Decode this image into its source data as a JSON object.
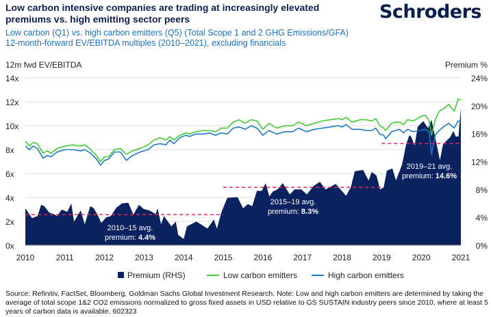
{
  "header": {
    "title": "Low carbon intensive companies are trading at increasingly elevated premiums vs. high emitting sector peers",
    "subtitle_line1": "Low carbon (Q1) vs. high carbon emitters (Q5) (Total Scope 1 and 2 GHG Emissions/GFA)",
    "subtitle_line2": "12-month-forward EV/EBITDA multiples (2010–2021), excluding financials",
    "logo": "Schroders"
  },
  "footer": {
    "source": "Source: Refinitiv, FactSet, Bloomberg, Goldman Sachs Global Investment Research. Note: Low and high carbon emitters are determined by taking the average of total scope 1&2 CO2 emissions normalized to gross fixed assets in USD relative to GS SUSTAIN industry peers since 2010, where at least 5 years of carbon data is available. 602323"
  },
  "colors": {
    "premium": "#0b2260",
    "low": "#3dcc2e",
    "high": "#1a7ac9",
    "avg": "#e8285a",
    "grid": "#dddddd"
  },
  "chart_data": {
    "type": "line+area",
    "ylabel_left": "12m fwd EV/EBITDA",
    "ylabel_right": "Premium %",
    "ylim_left": [
      0,
      14
    ],
    "ylim_right": [
      0,
      24
    ],
    "xlim": [
      2010,
      2021
    ],
    "x_ticks": [
      "2010",
      "2011",
      "2012",
      "2013",
      "2014",
      "2015",
      "2016",
      "2017",
      "2018",
      "2019",
      "2020",
      "2021"
    ],
    "y_ticks_left": [
      "0x",
      "2x",
      "4x",
      "6x",
      "8x",
      "10x",
      "12x",
      "14x"
    ],
    "y_ticks_right": [
      "0%",
      "4%",
      "8%",
      "12%",
      "16%",
      "20%",
      "24%"
    ],
    "grid": true,
    "legend_position": "bottom",
    "series": [
      {
        "name": "Premium (RHS)",
        "type": "area",
        "axis": "right",
        "points": [
          [
            2010,
            5.3
          ],
          [
            2010.17,
            3.9
          ],
          [
            2010.31,
            4.2
          ],
          [
            2010.4,
            5.8
          ],
          [
            2010.48,
            5.6
          ],
          [
            2010.6,
            4.7
          ],
          [
            2010.71,
            4.5
          ],
          [
            2010.8,
            4.2
          ],
          [
            2010.92,
            5.1
          ],
          [
            2011.06,
            4.8
          ],
          [
            2011.16,
            6.0
          ],
          [
            2011.23,
            3.4
          ],
          [
            2011.4,
            5.0
          ],
          [
            2011.5,
            3.0
          ],
          [
            2011.64,
            5.6
          ],
          [
            2011.73,
            5.3
          ],
          [
            2011.83,
            4.3
          ],
          [
            2011.92,
            3.2
          ],
          [
            2012.04,
            4.0
          ],
          [
            2012.16,
            4.2
          ],
          [
            2012.3,
            5.4
          ],
          [
            2012.44,
            6.0
          ],
          [
            2012.6,
            6.1
          ],
          [
            2012.73,
            4.4
          ],
          [
            2012.87,
            5.8
          ],
          [
            2012.99,
            5.2
          ],
          [
            2013.13,
            5.0
          ],
          [
            2013.29,
            4.5
          ],
          [
            2013.34,
            5.3
          ],
          [
            2013.43,
            3.0
          ],
          [
            2013.5,
            4.2
          ],
          [
            2013.69,
            2.7
          ],
          [
            2013.8,
            3.4
          ],
          [
            2013.86,
            1.5
          ],
          [
            2014.0,
            0.9
          ],
          [
            2014.08,
            2.7
          ],
          [
            2014.32,
            3.4
          ],
          [
            2014.6,
            2.4
          ],
          [
            2014.76,
            3.7
          ],
          [
            2014.84,
            2.4
          ],
          [
            2014.95,
            4.7
          ],
          [
            2015.1,
            6.8
          ],
          [
            2015.36,
            6.9
          ],
          [
            2015.5,
            5.3
          ],
          [
            2015.62,
            5.9
          ],
          [
            2015.73,
            5.6
          ],
          [
            2015.85,
            7.8
          ],
          [
            2015.97,
            7.8
          ],
          [
            2016.07,
            8.9
          ],
          [
            2016.16,
            7.0
          ],
          [
            2016.25,
            7.7
          ],
          [
            2016.37,
            8.0
          ],
          [
            2016.5,
            8.9
          ],
          [
            2016.68,
            7.3
          ],
          [
            2016.8,
            8.0
          ],
          [
            2016.97,
            8.0
          ],
          [
            2017.11,
            7.3
          ],
          [
            2017.28,
            8.5
          ],
          [
            2017.44,
            9.1
          ],
          [
            2017.58,
            8.0
          ],
          [
            2017.84,
            8.8
          ],
          [
            2018.1,
            7.1
          ],
          [
            2018.22,
            8.3
          ],
          [
            2018.32,
            10.6
          ],
          [
            2018.53,
            10.8
          ],
          [
            2018.67,
            9.3
          ],
          [
            2018.75,
            10.5
          ],
          [
            2018.87,
            10.0
          ],
          [
            2018.96,
            8.0
          ],
          [
            2019.05,
            8.3
          ],
          [
            2019.13,
            10.7
          ],
          [
            2019.27,
            11.0
          ],
          [
            2019.36,
            9.3
          ],
          [
            2019.51,
            11.5
          ],
          [
            2019.62,
            14.5
          ],
          [
            2019.7,
            15.8
          ],
          [
            2019.75,
            15.5
          ],
          [
            2019.83,
            14.3
          ],
          [
            2019.91,
            17.0
          ],
          [
            2020.05,
            17.8
          ],
          [
            2020.17,
            16.8
          ],
          [
            2020.26,
            18.0
          ],
          [
            2020.35,
            15.5
          ],
          [
            2020.47,
            12.2
          ],
          [
            2020.55,
            14.5
          ],
          [
            2020.64,
            15.0
          ],
          [
            2020.73,
            15.5
          ],
          [
            2020.81,
            16.4
          ],
          [
            2020.87,
            15.6
          ],
          [
            2020.94,
            15.6
          ],
          [
            2021.0,
            19.7
          ]
        ]
      },
      {
        "name": "Low carbon emitters",
        "type": "line",
        "axis": "left",
        "points": [
          [
            2010,
            8.7
          ],
          [
            2010.1,
            8.3
          ],
          [
            2010.2,
            8.6
          ],
          [
            2010.3,
            8.5
          ],
          [
            2010.45,
            7.7
          ],
          [
            2010.55,
            7.9
          ],
          [
            2010.65,
            7.7
          ],
          [
            2010.8,
            8.1
          ],
          [
            2011,
            8.3
          ],
          [
            2011.2,
            8.4
          ],
          [
            2011.4,
            8.3
          ],
          [
            2011.5,
            8.4
          ],
          [
            2011.65,
            8.0
          ],
          [
            2011.8,
            7.5
          ],
          [
            2011.9,
            7.0
          ],
          [
            2012,
            7.4
          ],
          [
            2012.1,
            7.4
          ],
          [
            2012.25,
            8.0
          ],
          [
            2012.4,
            8.1
          ],
          [
            2012.55,
            7.6
          ],
          [
            2012.7,
            7.9
          ],
          [
            2012.9,
            8.1
          ],
          [
            2013.1,
            8.4
          ],
          [
            2013.25,
            8.8
          ],
          [
            2013.4,
            9.0
          ],
          [
            2013.55,
            8.8
          ],
          [
            2013.65,
            9.1
          ],
          [
            2013.75,
            8.8
          ],
          [
            2013.9,
            9.2
          ],
          [
            2014.05,
            9.4
          ],
          [
            2014.15,
            9.3
          ],
          [
            2014.3,
            9.5
          ],
          [
            2014.5,
            9.6
          ],
          [
            2014.65,
            9.6
          ],
          [
            2014.8,
            9.5
          ],
          [
            2014.95,
            9.8
          ],
          [
            2015.1,
            9.8
          ],
          [
            2015.25,
            10.3
          ],
          [
            2015.4,
            10.5
          ],
          [
            2015.55,
            10.2
          ],
          [
            2015.7,
            10.5
          ],
          [
            2015.85,
            10.4
          ],
          [
            2016,
            9.7
          ],
          [
            2016.15,
            10.2
          ],
          [
            2016.35,
            9.8
          ],
          [
            2016.55,
            10.0
          ],
          [
            2016.75,
            10.0
          ],
          [
            2016.9,
            10.3
          ],
          [
            2017.1,
            10.0
          ],
          [
            2017.3,
            10.2
          ],
          [
            2017.5,
            10.4
          ],
          [
            2017.7,
            10.5
          ],
          [
            2017.9,
            10.6
          ],
          [
            2018,
            10.5
          ],
          [
            2018.1,
            10.7
          ],
          [
            2018.25,
            10.3
          ],
          [
            2018.45,
            10.5
          ],
          [
            2018.6,
            10.5
          ],
          [
            2018.75,
            10.4
          ],
          [
            2018.85,
            10.6
          ],
          [
            2018.95,
            10.0
          ],
          [
            2019.05,
            9.8
          ],
          [
            2019.1,
            9.6
          ],
          [
            2019.25,
            10.2
          ],
          [
            2019.35,
            10.3
          ],
          [
            2019.45,
            10.3
          ],
          [
            2019.55,
            10.1
          ],
          [
            2019.65,
            10.5
          ],
          [
            2019.8,
            10.4
          ],
          [
            2019.95,
            10.7
          ],
          [
            2020.1,
            10.9
          ],
          [
            2020.2,
            10.4
          ],
          [
            2020.26,
            9.2
          ],
          [
            2020.35,
            10.5
          ],
          [
            2020.45,
            11.2
          ],
          [
            2020.6,
            11.5
          ],
          [
            2020.69,
            11.8
          ],
          [
            2020.83,
            11.2
          ],
          [
            2020.93,
            12.2
          ],
          [
            2021,
            12.2
          ]
        ]
      },
      {
        "name": "High carbon emitters",
        "type": "line",
        "axis": "left",
        "points": [
          [
            2010,
            8.3
          ],
          [
            2010.1,
            8.0
          ],
          [
            2010.2,
            8.3
          ],
          [
            2010.3,
            8.1
          ],
          [
            2010.45,
            7.3
          ],
          [
            2010.55,
            7.5
          ],
          [
            2010.65,
            7.4
          ],
          [
            2010.8,
            7.8
          ],
          [
            2011,
            8.0
          ],
          [
            2011.2,
            8.0
          ],
          [
            2011.4,
            7.9
          ],
          [
            2011.5,
            8.0
          ],
          [
            2011.65,
            7.7
          ],
          [
            2011.8,
            7.2
          ],
          [
            2011.9,
            6.7
          ],
          [
            2012,
            7.1
          ],
          [
            2012.1,
            7.2
          ],
          [
            2012.25,
            7.8
          ],
          [
            2012.4,
            7.8
          ],
          [
            2012.55,
            7.1
          ],
          [
            2012.7,
            7.5
          ],
          [
            2012.9,
            7.8
          ],
          [
            2013.1,
            8.0
          ],
          [
            2013.25,
            8.4
          ],
          [
            2013.4,
            8.5
          ],
          [
            2013.55,
            8.4
          ],
          [
            2013.65,
            8.8
          ],
          [
            2013.75,
            8.5
          ],
          [
            2013.9,
            9.0
          ],
          [
            2014.05,
            9.2
          ],
          [
            2014.15,
            9.1
          ],
          [
            2014.3,
            9.3
          ],
          [
            2014.5,
            9.3
          ],
          [
            2014.65,
            9.4
          ],
          [
            2014.8,
            9.2
          ],
          [
            2014.95,
            9.4
          ],
          [
            2015.1,
            9.3
          ],
          [
            2015.25,
            9.8
          ],
          [
            2015.4,
            9.9
          ],
          [
            2015.55,
            9.7
          ],
          [
            2015.7,
            10.0
          ],
          [
            2015.85,
            9.8
          ],
          [
            2016,
            9.2
          ],
          [
            2016.15,
            9.6
          ],
          [
            2016.35,
            9.3
          ],
          [
            2016.55,
            9.5
          ],
          [
            2016.75,
            9.5
          ],
          [
            2016.9,
            9.8
          ],
          [
            2017.1,
            9.5
          ],
          [
            2017.3,
            9.7
          ],
          [
            2017.5,
            9.8
          ],
          [
            2017.7,
            9.9
          ],
          [
            2017.9,
            10.0
          ],
          [
            2018,
            9.9
          ],
          [
            2018.1,
            10.1
          ],
          [
            2018.25,
            9.7
          ],
          [
            2018.45,
            9.7
          ],
          [
            2018.6,
            9.6
          ],
          [
            2018.75,
            9.6
          ],
          [
            2018.85,
            9.8
          ],
          [
            2018.95,
            9.3
          ],
          [
            2019.05,
            9.2
          ],
          [
            2019.1,
            8.9
          ],
          [
            2019.25,
            9.5
          ],
          [
            2019.35,
            9.6
          ],
          [
            2019.45,
            9.7
          ],
          [
            2019.55,
            9.4
          ],
          [
            2019.65,
            9.7
          ],
          [
            2019.8,
            9.5
          ],
          [
            2019.95,
            9.6
          ],
          [
            2020.1,
            9.7
          ],
          [
            2020.2,
            9.5
          ],
          [
            2020.26,
            7.6
          ],
          [
            2020.35,
            9.2
          ],
          [
            2020.45,
            9.6
          ],
          [
            2020.6,
            10.0
          ],
          [
            2020.69,
            10.2
          ],
          [
            2020.83,
            9.8
          ],
          [
            2020.93,
            10.4
          ],
          [
            2021,
            10.3
          ]
        ]
      }
    ],
    "annotations": [
      {
        "period": [
          2010,
          2015
        ],
        "value": 4.4,
        "line1": "2010–15 avg.",
        "line2_prefix": "premium: ",
        "line2_value": "4.4%"
      },
      {
        "period": [
          2015,
          2019
        ],
        "value": 8.3,
        "line1": "2015–19 avg.",
        "line2_prefix": "premium: ",
        "line2_value": "8.3%"
      },
      {
        "period": [
          2019,
          2021
        ],
        "value": 14.6,
        "line1": "2019–21 avg.",
        "line2_prefix": "premium: ",
        "line2_value": "14.6%"
      }
    ]
  }
}
